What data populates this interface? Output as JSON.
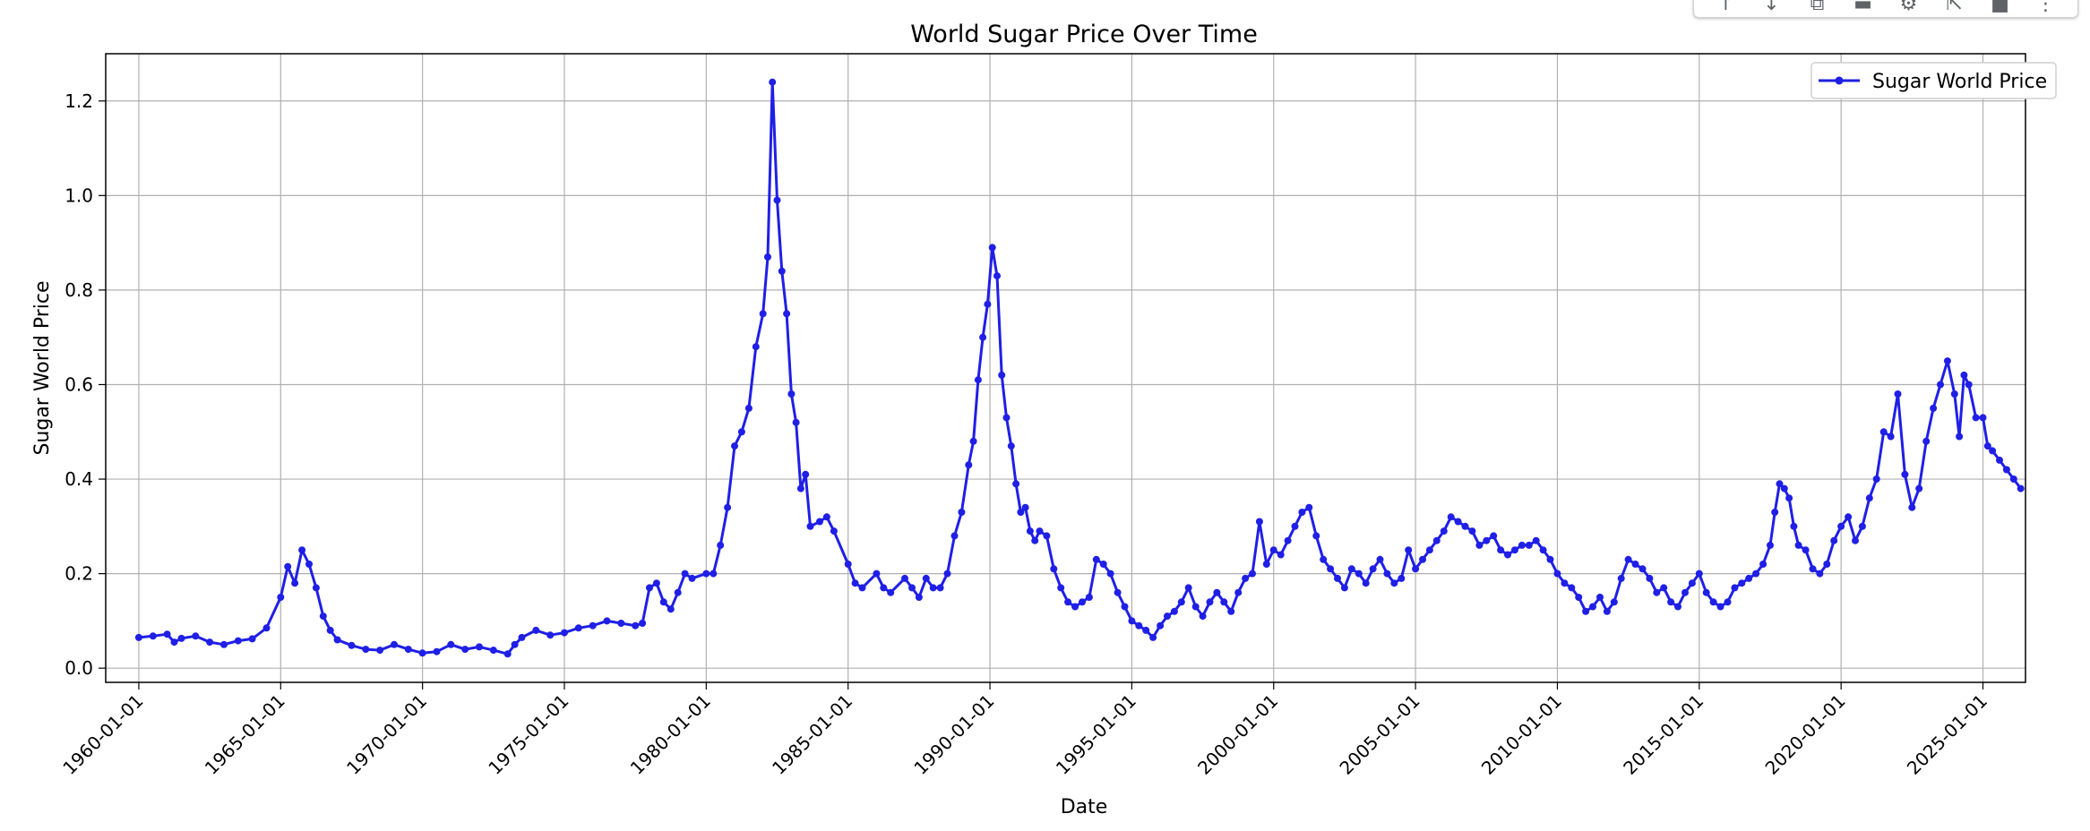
{
  "chart_data": {
    "type": "line",
    "title": "World Sugar Price Over Time",
    "xlabel": "Date",
    "ylabel": "Sugar World Price",
    "x_tick_labels": [
      "1960-01-01",
      "1965-01-01",
      "1970-01-01",
      "1975-01-01",
      "1980-01-01",
      "1985-01-01",
      "1990-01-01",
      "1995-01-01",
      "2000-01-01",
      "2005-01-01",
      "2010-01-01",
      "2015-01-01",
      "2020-01-01",
      "2025-01-01"
    ],
    "y_tick_labels": [
      "0.0",
      "0.2",
      "0.4",
      "0.6",
      "0.8",
      "1.0",
      "1.2"
    ],
    "xlim": [
      "1958-11-01",
      "2026-07-01"
    ],
    "ylim": [
      -0.03,
      1.3
    ],
    "grid": true,
    "legend": "top-right",
    "series": [
      {
        "name": "Sugar World Price",
        "color": "#1f1fe6",
        "marker": "circle",
        "points": [
          [
            "1960-01-01",
            0.065
          ],
          [
            "1960-07-01",
            0.068
          ],
          [
            "1961-01-01",
            0.072
          ],
          [
            "1961-04-01",
            0.055
          ],
          [
            "1961-07-01",
            0.063
          ],
          [
            "1962-01-01",
            0.068
          ],
          [
            "1962-07-01",
            0.055
          ],
          [
            "1963-01-01",
            0.05
          ],
          [
            "1963-07-01",
            0.058
          ],
          [
            "1964-01-01",
            0.062
          ],
          [
            "1964-07-01",
            0.085
          ],
          [
            "1965-01-01",
            0.15
          ],
          [
            "1965-04-01",
            0.215
          ],
          [
            "1965-07-01",
            0.18
          ],
          [
            "1965-10-01",
            0.25
          ],
          [
            "1966-01-01",
            0.22
          ],
          [
            "1966-04-01",
            0.17
          ],
          [
            "1966-07-01",
            0.11
          ],
          [
            "1966-10-01",
            0.08
          ],
          [
            "1967-01-01",
            0.06
          ],
          [
            "1967-07-01",
            0.048
          ],
          [
            "1968-01-01",
            0.04
          ],
          [
            "1968-07-01",
            0.038
          ],
          [
            "1969-01-01",
            0.05
          ],
          [
            "1969-07-01",
            0.04
          ],
          [
            "1970-01-01",
            0.032
          ],
          [
            "1970-07-01",
            0.035
          ],
          [
            "1971-01-01",
            0.05
          ],
          [
            "1971-07-01",
            0.04
          ],
          [
            "1972-01-01",
            0.045
          ],
          [
            "1972-07-01",
            0.038
          ],
          [
            "1973-01-01",
            0.03
          ],
          [
            "1973-04-01",
            0.05
          ],
          [
            "1973-07-01",
            0.065
          ],
          [
            "1974-01-01",
            0.08
          ],
          [
            "1974-07-01",
            0.07
          ],
          [
            "1975-01-01",
            0.075
          ],
          [
            "1975-07-01",
            0.085
          ],
          [
            "1976-01-01",
            0.09
          ],
          [
            "1976-07-01",
            0.1
          ],
          [
            "1977-01-01",
            0.095
          ],
          [
            "1977-07-01",
            0.09
          ],
          [
            "1977-10-01",
            0.095
          ],
          [
            "1978-01-01",
            0.17
          ],
          [
            "1978-04-01",
            0.18
          ],
          [
            "1978-07-01",
            0.14
          ],
          [
            "1978-10-01",
            0.125
          ],
          [
            "1979-01-01",
            0.16
          ],
          [
            "1979-04-01",
            0.2
          ],
          [
            "1979-07-01",
            0.19
          ],
          [
            "1980-01-01",
            0.2
          ],
          [
            "1980-04-01",
            0.2
          ],
          [
            "1980-07-01",
            0.26
          ],
          [
            "1980-10-01",
            0.34
          ],
          [
            "1981-01-01",
            0.47
          ],
          [
            "1981-04-01",
            0.5
          ],
          [
            "1981-07-01",
            0.55
          ],
          [
            "1981-10-01",
            0.68
          ],
          [
            "1982-01-01",
            0.75
          ],
          [
            "1982-03-01",
            0.87
          ],
          [
            "1982-05-01",
            1.24
          ],
          [
            "1982-07-01",
            0.99
          ],
          [
            "1982-09-01",
            0.84
          ],
          [
            "1982-11-01",
            0.75
          ],
          [
            "1983-01-01",
            0.58
          ],
          [
            "1983-03-01",
            0.52
          ],
          [
            "1983-05-01",
            0.38
          ],
          [
            "1983-07-01",
            0.41
          ],
          [
            "1983-09-01",
            0.3
          ],
          [
            "1984-01-01",
            0.31
          ],
          [
            "1984-04-01",
            0.32
          ],
          [
            "1984-07-01",
            0.29
          ],
          [
            "1985-01-01",
            0.22
          ],
          [
            "1985-04-01",
            0.18
          ],
          [
            "1985-07-01",
            0.17
          ],
          [
            "1986-01-01",
            0.2
          ],
          [
            "1986-04-01",
            0.17
          ],
          [
            "1986-07-01",
            0.16
          ],
          [
            "1987-01-01",
            0.19
          ],
          [
            "1987-04-01",
            0.17
          ],
          [
            "1987-07-01",
            0.15
          ],
          [
            "1987-10-01",
            0.19
          ],
          [
            "1988-01-01",
            0.17
          ],
          [
            "1988-04-01",
            0.17
          ],
          [
            "1988-07-01",
            0.2
          ],
          [
            "1988-10-01",
            0.28
          ],
          [
            "1989-01-01",
            0.33
          ],
          [
            "1989-04-01",
            0.43
          ],
          [
            "1989-06-01",
            0.48
          ],
          [
            "1989-08-01",
            0.61
          ],
          [
            "1989-10-01",
            0.7
          ],
          [
            "1989-12-01",
            0.77
          ],
          [
            "1990-02-01",
            0.89
          ],
          [
            "1990-04-01",
            0.83
          ],
          [
            "1990-06-01",
            0.62
          ],
          [
            "1990-08-01",
            0.53
          ],
          [
            "1990-10-01",
            0.47
          ],
          [
            "1990-12-01",
            0.39
          ],
          [
            "1991-02-01",
            0.33
          ],
          [
            "1991-04-01",
            0.34
          ],
          [
            "1991-06-01",
            0.29
          ],
          [
            "1991-08-01",
            0.27
          ],
          [
            "1991-10-01",
            0.29
          ],
          [
            "1992-01-01",
            0.28
          ],
          [
            "1992-04-01",
            0.21
          ],
          [
            "1992-07-01",
            0.17
          ],
          [
            "1992-10-01",
            0.14
          ],
          [
            "1993-01-01",
            0.13
          ],
          [
            "1993-04-01",
            0.14
          ],
          [
            "1993-07-01",
            0.15
          ],
          [
            "1993-10-01",
            0.23
          ],
          [
            "1994-01-01",
            0.22
          ],
          [
            "1994-04-01",
            0.2
          ],
          [
            "1994-07-01",
            0.16
          ],
          [
            "1994-10-01",
            0.13
          ],
          [
            "1995-01-01",
            0.1
          ],
          [
            "1995-04-01",
            0.09
          ],
          [
            "1995-07-01",
            0.08
          ],
          [
            "1995-10-01",
            0.065
          ],
          [
            "1996-01-01",
            0.09
          ],
          [
            "1996-04-01",
            0.11
          ],
          [
            "1996-07-01",
            0.12
          ],
          [
            "1996-10-01",
            0.14
          ],
          [
            "1997-01-01",
            0.17
          ],
          [
            "1997-04-01",
            0.13
          ],
          [
            "1997-07-01",
            0.11
          ],
          [
            "1997-10-01",
            0.14
          ],
          [
            "1998-01-01",
            0.16
          ],
          [
            "1998-04-01",
            0.14
          ],
          [
            "1998-07-01",
            0.12
          ],
          [
            "1998-10-01",
            0.16
          ],
          [
            "1999-01-01",
            0.19
          ],
          [
            "1999-04-01",
            0.2
          ],
          [
            "1999-07-01",
            0.31
          ],
          [
            "1999-10-01",
            0.22
          ],
          [
            "2000-01-01",
            0.25
          ],
          [
            "2000-04-01",
            0.24
          ],
          [
            "2000-07-01",
            0.27
          ],
          [
            "2000-10-01",
            0.3
          ],
          [
            "2001-01-01",
            0.33
          ],
          [
            "2001-04-01",
            0.34
          ],
          [
            "2001-07-01",
            0.28
          ],
          [
            "2001-10-01",
            0.23
          ],
          [
            "2002-01-01",
            0.21
          ],
          [
            "2002-04-01",
            0.19
          ],
          [
            "2002-07-01",
            0.17
          ],
          [
            "2002-10-01",
            0.21
          ],
          [
            "2003-01-01",
            0.2
          ],
          [
            "2003-04-01",
            0.18
          ],
          [
            "2003-07-01",
            0.21
          ],
          [
            "2003-10-01",
            0.23
          ],
          [
            "2004-01-01",
            0.2
          ],
          [
            "2004-04-01",
            0.18
          ],
          [
            "2004-07-01",
            0.19
          ],
          [
            "2004-10-01",
            0.25
          ],
          [
            "2005-01-01",
            0.21
          ],
          [
            "2005-04-01",
            0.23
          ],
          [
            "2005-07-01",
            0.25
          ],
          [
            "2005-10-01",
            0.27
          ],
          [
            "2006-01-01",
            0.29
          ],
          [
            "2006-04-01",
            0.32
          ],
          [
            "2006-07-01",
            0.31
          ],
          [
            "2006-10-01",
            0.3
          ],
          [
            "2007-01-01",
            0.29
          ],
          [
            "2007-04-01",
            0.26
          ],
          [
            "2007-07-01",
            0.27
          ],
          [
            "2007-10-01",
            0.28
          ],
          [
            "2008-01-01",
            0.25
          ],
          [
            "2008-04-01",
            0.24
          ],
          [
            "2008-07-01",
            0.25
          ],
          [
            "2008-10-01",
            0.26
          ],
          [
            "2009-01-01",
            0.26
          ],
          [
            "2009-04-01",
            0.27
          ],
          [
            "2009-07-01",
            0.25
          ],
          [
            "2009-10-01",
            0.23
          ],
          [
            "2010-01-01",
            0.2
          ],
          [
            "2010-04-01",
            0.18
          ],
          [
            "2010-07-01",
            0.17
          ],
          [
            "2010-10-01",
            0.15
          ],
          [
            "2011-01-01",
            0.12
          ],
          [
            "2011-04-01",
            0.13
          ],
          [
            "2011-07-01",
            0.15
          ],
          [
            "2011-10-01",
            0.12
          ],
          [
            "2012-01-01",
            0.14
          ],
          [
            "2012-04-01",
            0.19
          ],
          [
            "2012-07-01",
            0.23
          ],
          [
            "2012-10-01",
            0.22
          ],
          [
            "2013-01-01",
            0.21
          ],
          [
            "2013-04-01",
            0.19
          ],
          [
            "2013-07-01",
            0.16
          ],
          [
            "2013-10-01",
            0.17
          ],
          [
            "2014-01-01",
            0.14
          ],
          [
            "2014-04-01",
            0.13
          ],
          [
            "2014-07-01",
            0.16
          ],
          [
            "2014-10-01",
            0.18
          ],
          [
            "2015-01-01",
            0.2
          ],
          [
            "2015-04-01",
            0.16
          ],
          [
            "2015-07-01",
            0.14
          ],
          [
            "2015-10-01",
            0.13
          ],
          [
            "2016-01-01",
            0.14
          ],
          [
            "2016-04-01",
            0.17
          ],
          [
            "2016-07-01",
            0.18
          ],
          [
            "2016-10-01",
            0.19
          ],
          [
            "2017-01-01",
            0.2
          ],
          [
            "2017-04-01",
            0.22
          ],
          [
            "2017-07-01",
            0.26
          ],
          [
            "2017-09-01",
            0.33
          ],
          [
            "2017-11-01",
            0.39
          ],
          [
            "2018-01-01",
            0.38
          ],
          [
            "2018-03-01",
            0.36
          ],
          [
            "2018-05-01",
            0.3
          ],
          [
            "2018-07-01",
            0.26
          ],
          [
            "2018-10-01",
            0.25
          ],
          [
            "2019-01-01",
            0.21
          ],
          [
            "2019-04-01",
            0.2
          ],
          [
            "2019-07-01",
            0.22
          ],
          [
            "2019-10-01",
            0.27
          ],
          [
            "2020-01-01",
            0.3
          ],
          [
            "2020-04-01",
            0.32
          ],
          [
            "2020-07-01",
            0.27
          ],
          [
            "2020-10-01",
            0.3
          ],
          [
            "2021-01-01",
            0.36
          ],
          [
            "2021-04-01",
            0.4
          ],
          [
            "2021-07-01",
            0.5
          ],
          [
            "2021-10-01",
            0.49
          ],
          [
            "2022-01-01",
            0.58
          ],
          [
            "2022-04-01",
            0.41
          ],
          [
            "2022-07-01",
            0.34
          ],
          [
            "2022-10-01",
            0.38
          ],
          [
            "2023-01-01",
            0.48
          ],
          [
            "2023-04-01",
            0.55
          ],
          [
            "2023-07-01",
            0.6
          ],
          [
            "2023-10-01",
            0.65
          ],
          [
            "2024-01-01",
            0.58
          ],
          [
            "2024-03-01",
            0.49
          ],
          [
            "2024-05-01",
            0.62
          ],
          [
            "2024-07-01",
            0.6
          ],
          [
            "2024-10-01",
            0.53
          ],
          [
            "2025-01-01",
            0.53
          ],
          [
            "2025-03-01",
            0.47
          ],
          [
            "2025-05-01",
            0.46
          ],
          [
            "2025-08-01",
            0.44
          ],
          [
            "2025-11-01",
            0.42
          ],
          [
            "2026-02-01",
            0.4
          ],
          [
            "2026-05-01",
            0.38
          ]
        ]
      }
    ]
  },
  "toolbar": {
    "icons": [
      "arrow-up-icon",
      "arrow-down-icon",
      "link-icon",
      "comment-icon",
      "gear-icon",
      "share-icon",
      "trash-icon",
      "more-vert-icon"
    ]
  }
}
